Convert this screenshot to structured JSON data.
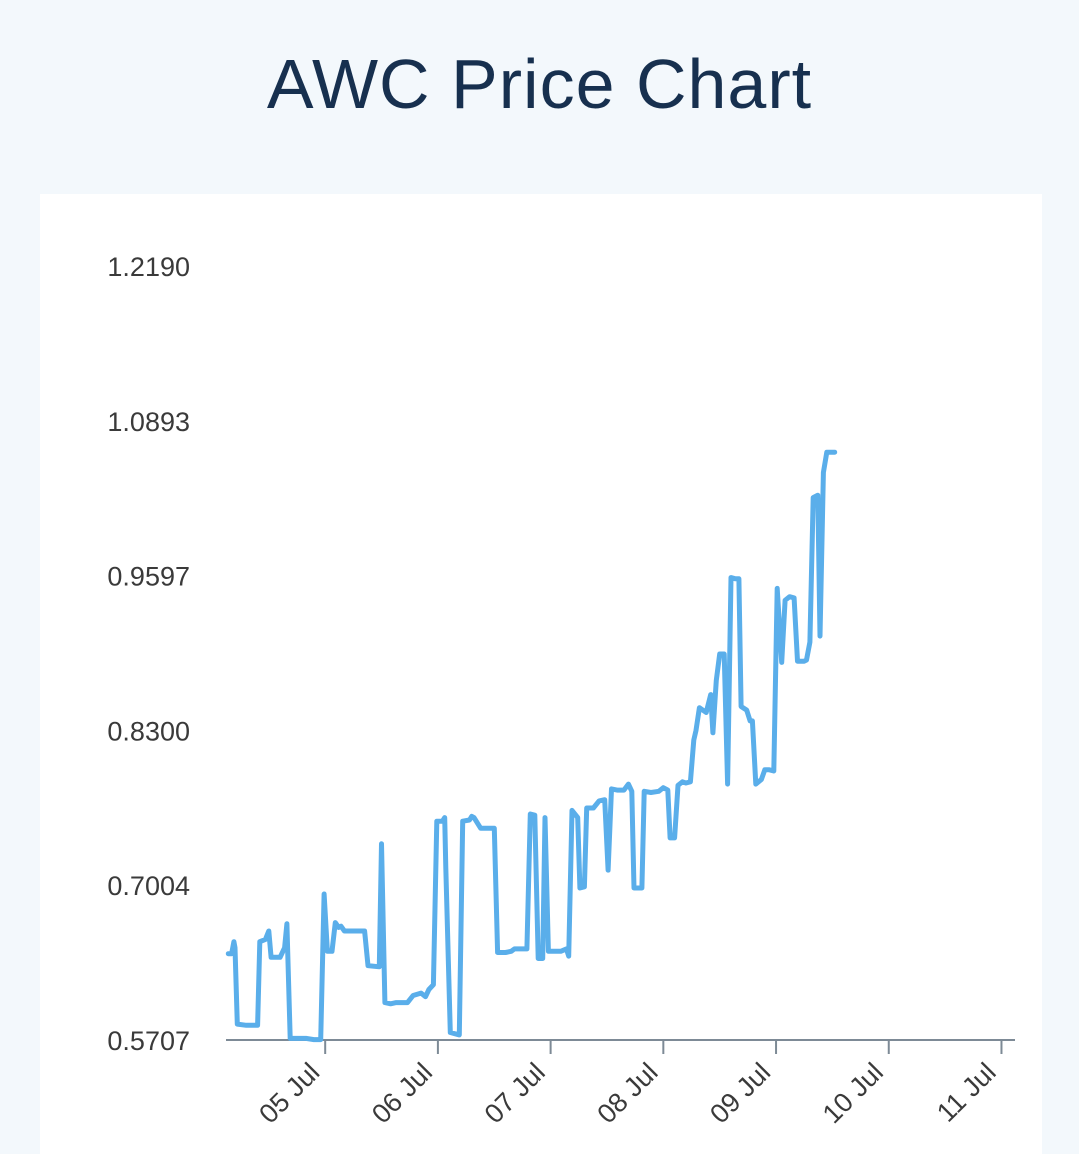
{
  "header": {
    "title": "AWC Price Chart"
  },
  "colors": {
    "line": "#5aaeea",
    "axis": "#7d8a96",
    "title": "#17304f",
    "background": "#f3f8fc",
    "card": "#ffffff"
  },
  "chart_data": {
    "type": "line",
    "title": "AWC Price Chart",
    "xlabel": "",
    "ylabel": "",
    "grid": false,
    "y_ticks": [
      "1.2190",
      "1.0893",
      "0.9597",
      "0.8300",
      "0.7004",
      "0.5707"
    ],
    "ylim": [
      0.5707,
      1.219
    ],
    "x_ticks": [
      {
        "label": "05 Jul",
        "day": 5
      },
      {
        "label": "06 Jul",
        "day": 6
      },
      {
        "label": "07 Jul",
        "day": 7
      },
      {
        "label": "08 Jul",
        "day": 8
      },
      {
        "label": "09 Jul",
        "day": 9
      },
      {
        "label": "10 Jul",
        "day": 10
      },
      {
        "label": "11 Jul",
        "day": 11
      }
    ],
    "xlim": [
      4.12,
      11.12
    ],
    "series": [
      {
        "points": [
          [
            4.14,
            0.643
          ],
          [
            4.17,
            0.643
          ],
          [
            4.19,
            0.653
          ],
          [
            4.2,
            0.648
          ],
          [
            4.22,
            0.584
          ],
          [
            4.3,
            0.583
          ],
          [
            4.38,
            0.583
          ],
          [
            4.4,
            0.583
          ],
          [
            4.42,
            0.653
          ],
          [
            4.47,
            0.655
          ],
          [
            4.5,
            0.662
          ],
          [
            4.52,
            0.64
          ],
          [
            4.6,
            0.64
          ],
          [
            4.64,
            0.648
          ],
          [
            4.66,
            0.668
          ],
          [
            4.69,
            0.572
          ],
          [
            4.77,
            0.572
          ],
          [
            4.83,
            0.572
          ],
          [
            4.9,
            0.571
          ],
          [
            4.96,
            0.571
          ],
          [
            4.99,
            0.693
          ],
          [
            5.02,
            0.645
          ],
          [
            5.06,
            0.645
          ],
          [
            5.09,
            0.669
          ],
          [
            5.12,
            0.665
          ],
          [
            5.14,
            0.666
          ],
          [
            5.17,
            0.662
          ],
          [
            5.25,
            0.662
          ],
          [
            5.35,
            0.662
          ],
          [
            5.38,
            0.633
          ],
          [
            5.48,
            0.632
          ],
          [
            5.5,
            0.735
          ],
          [
            5.53,
            0.602
          ],
          [
            5.58,
            0.601
          ],
          [
            5.63,
            0.602
          ],
          [
            5.73,
            0.602
          ],
          [
            5.78,
            0.608
          ],
          [
            5.85,
            0.61
          ],
          [
            5.89,
            0.607
          ],
          [
            5.92,
            0.613
          ],
          [
            5.96,
            0.617
          ],
          [
            5.99,
            0.754
          ],
          [
            6.04,
            0.754
          ],
          [
            6.06,
            0.757
          ],
          [
            6.07,
            0.715
          ],
          [
            6.11,
            0.577
          ],
          [
            6.19,
            0.575
          ],
          [
            6.22,
            0.754
          ],
          [
            6.28,
            0.755
          ],
          [
            6.3,
            0.758
          ],
          [
            6.32,
            0.757
          ],
          [
            6.38,
            0.748
          ],
          [
            6.45,
            0.748
          ],
          [
            6.5,
            0.748
          ],
          [
            6.53,
            0.644
          ],
          [
            6.6,
            0.644
          ],
          [
            6.65,
            0.645
          ],
          [
            6.68,
            0.647
          ],
          [
            6.73,
            0.647
          ],
          [
            6.79,
            0.647
          ],
          [
            6.82,
            0.76
          ],
          [
            6.86,
            0.759
          ],
          [
            6.89,
            0.639
          ],
          [
            6.93,
            0.639
          ],
          [
            6.95,
            0.757
          ],
          [
            6.98,
            0.645
          ],
          [
            7.05,
            0.645
          ],
          [
            7.09,
            0.645
          ],
          [
            7.14,
            0.647
          ],
          [
            7.16,
            0.641
          ],
          [
            7.19,
            0.763
          ],
          [
            7.24,
            0.757
          ],
          [
            7.26,
            0.698
          ],
          [
            7.3,
            0.699
          ],
          [
            7.32,
            0.765
          ],
          [
            7.38,
            0.765
          ],
          [
            7.43,
            0.771
          ],
          [
            7.48,
            0.772
          ],
          [
            7.51,
            0.713
          ],
          [
            7.54,
            0.781
          ],
          [
            7.59,
            0.78
          ],
          [
            7.65,
            0.78
          ],
          [
            7.69,
            0.785
          ],
          [
            7.72,
            0.779
          ],
          [
            7.74,
            0.698
          ],
          [
            7.81,
            0.698
          ],
          [
            7.83,
            0.779
          ],
          [
            7.89,
            0.778
          ],
          [
            7.96,
            0.779
          ],
          [
            8.0,
            0.782
          ],
          [
            8.04,
            0.78
          ],
          [
            8.06,
            0.74
          ],
          [
            8.1,
            0.74
          ],
          [
            8.13,
            0.784
          ],
          [
            8.17,
            0.787
          ],
          [
            8.2,
            0.786
          ],
          [
            8.24,
            0.787
          ],
          [
            8.27,
            0.822
          ],
          [
            8.29,
            0.83
          ],
          [
            8.32,
            0.849
          ],
          [
            8.38,
            0.845
          ],
          [
            8.42,
            0.86
          ],
          [
            8.44,
            0.828
          ],
          [
            8.47,
            0.872
          ],
          [
            8.5,
            0.894
          ],
          [
            8.54,
            0.894
          ],
          [
            8.57,
            0.785
          ],
          [
            8.6,
            0.958
          ],
          [
            8.64,
            0.957
          ],
          [
            8.67,
            0.957
          ],
          [
            8.69,
            0.85
          ],
          [
            8.74,
            0.847
          ],
          [
            8.77,
            0.838
          ],
          [
            8.79,
            0.838
          ],
          [
            8.82,
            0.785
          ],
          [
            8.87,
            0.789
          ],
          [
            8.9,
            0.797
          ],
          [
            8.94,
            0.797
          ],
          [
            8.98,
            0.796
          ],
          [
            9.01,
            0.949
          ],
          [
            9.05,
            0.887
          ],
          [
            9.08,
            0.939
          ],
          [
            9.12,
            0.942
          ],
          [
            9.16,
            0.941
          ],
          [
            9.19,
            0.888
          ],
          [
            9.25,
            0.888
          ],
          [
            9.27,
            0.889
          ],
          [
            9.3,
            0.904
          ],
          [
            9.33,
            1.025
          ],
          [
            9.37,
            1.027
          ],
          [
            9.39,
            0.909
          ],
          [
            9.42,
            1.046
          ],
          [
            9.45,
            1.063
          ],
          [
            9.5,
            1.063
          ],
          [
            9.52,
            1.063
          ]
        ]
      }
    ]
  }
}
